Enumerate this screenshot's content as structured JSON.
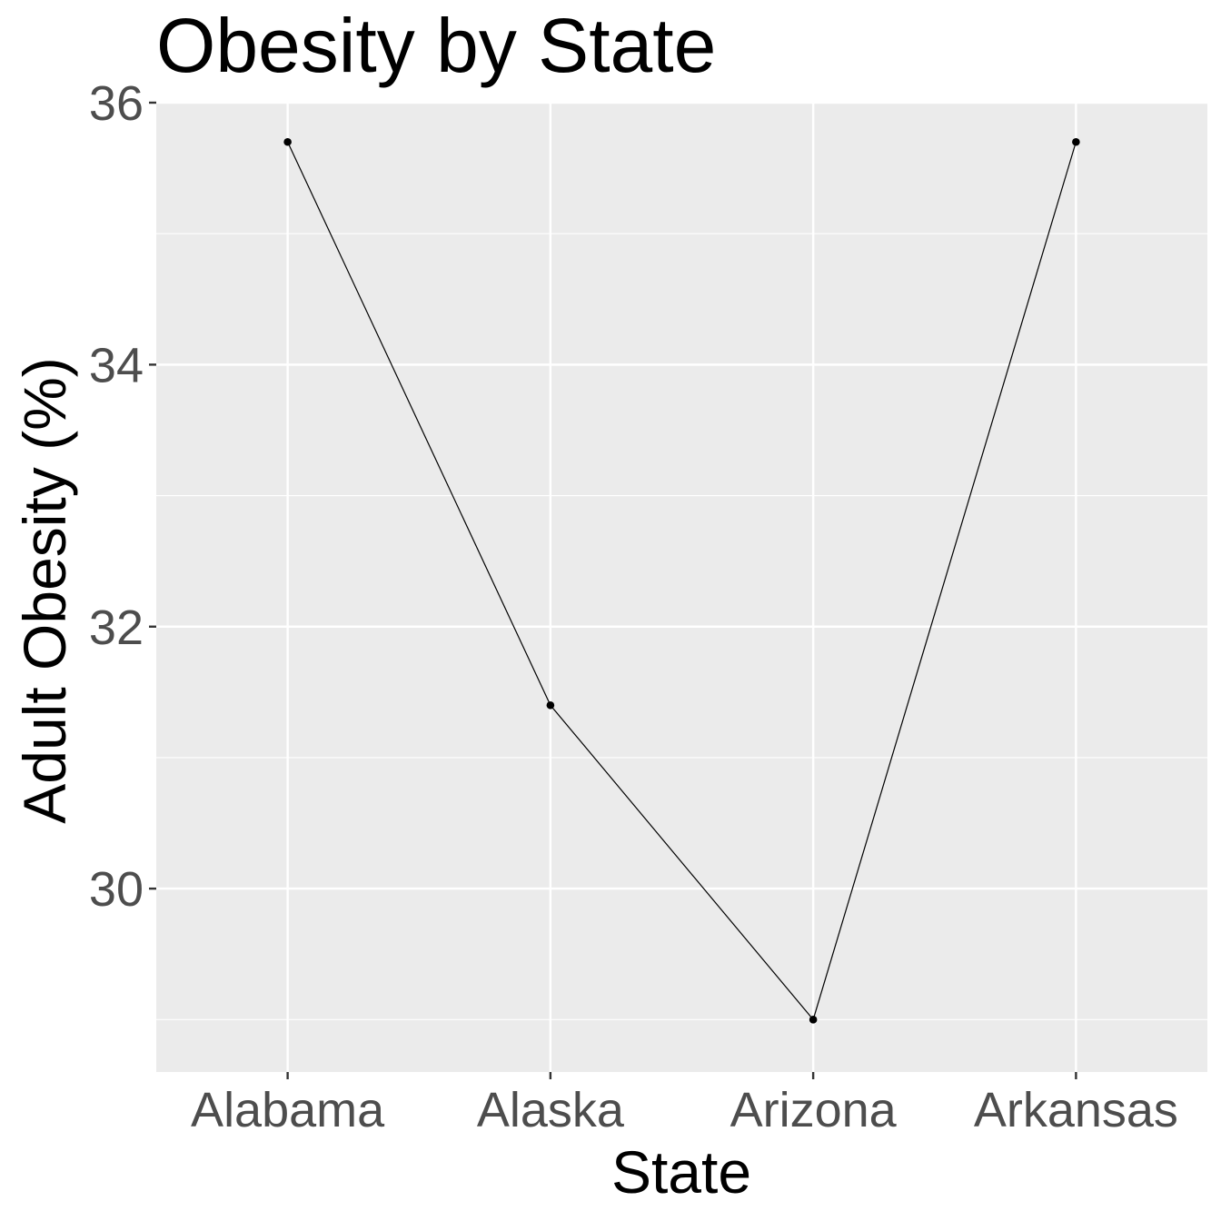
{
  "chart_data": {
    "type": "line",
    "title": "Obesity by State",
    "xlabel": "State",
    "ylabel": "Adult Obesity (%)",
    "categories": [
      "Alabama",
      "Alaska",
      "Arizona",
      "Arkansas"
    ],
    "values": [
      35.7,
      31.4,
      29.0,
      35.7
    ],
    "ylim": [
      28.6,
      36.0
    ],
    "yticks": [
      30,
      32,
      34,
      36
    ],
    "grid": true,
    "legend": "none",
    "colors": {
      "panel": "#ebebeb",
      "grid": "#ffffff",
      "line": "#000000",
      "point": "#000000",
      "tick_text": "#4d4d4d",
      "tick_mark": "#333333"
    }
  }
}
